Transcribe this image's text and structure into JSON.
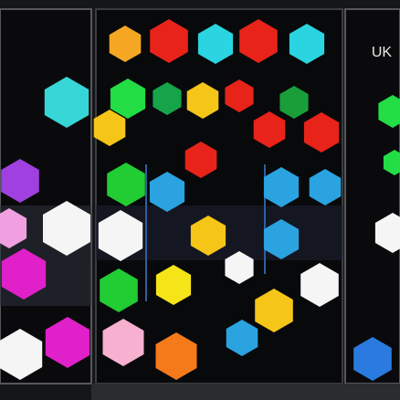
{
  "screen": {
    "label": "UK"
  }
}
